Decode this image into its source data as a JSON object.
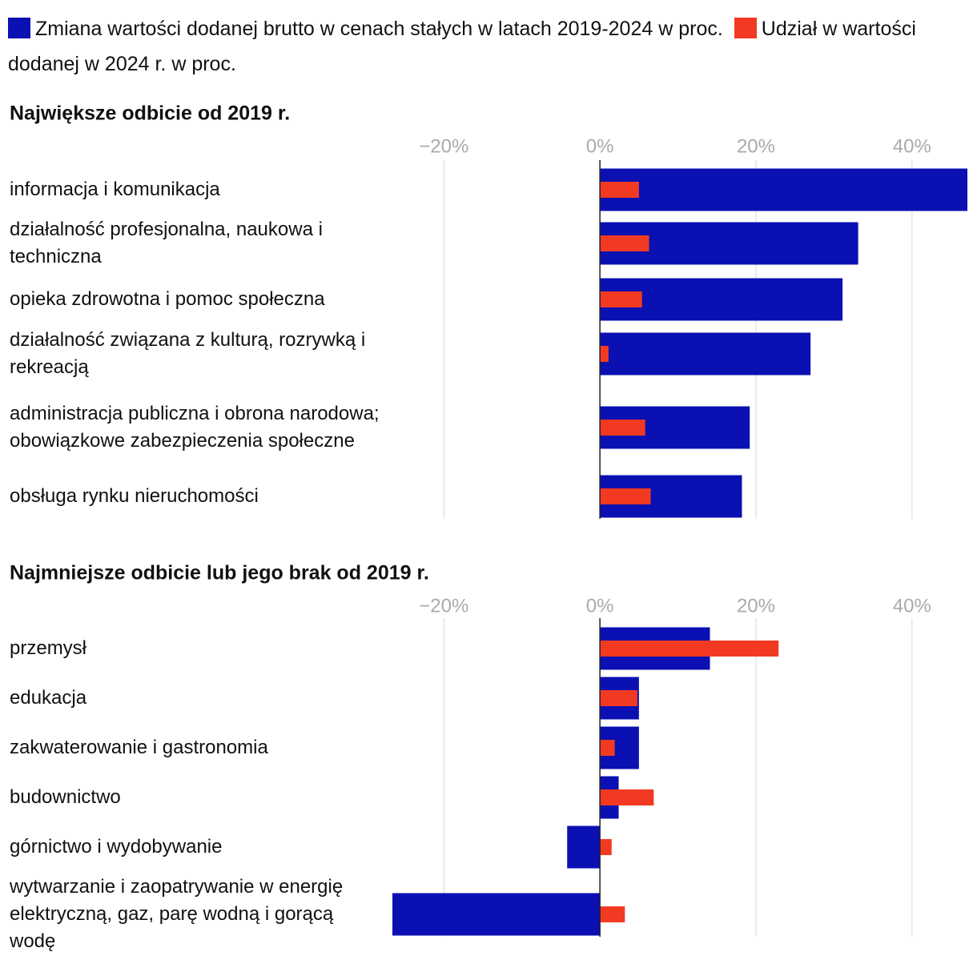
{
  "chart_data": [
    {
      "type": "bar",
      "orientation": "horizontal",
      "title": "Największe odbicie od 2019 r.",
      "categories": [
        "informacja i komunikacja",
        "działalność profesjonalna, naukowa i techniczna",
        "opieka zdrowotna i pomoc społeczna",
        "działalność związana z kulturą, rozrywką i rekreacją",
        "administracja publiczna i obrona narodowa; obowiązkowe zabezpieczenia społeczne",
        "obsługa rynku nieruchomości"
      ],
      "series": [
        {
          "name": "Zmiana wartości dodanej brutto w cenach stałych w latach 2019-2024 w proc.",
          "color": "#0a10b2",
          "values": [
            47.1,
            33.1,
            31.1,
            27.0,
            19.2,
            18.2
          ]
        },
        {
          "name": "Udział w wartości dodanej w 2024 r. w proc.",
          "color": "#f23a22",
          "values": [
            5.0,
            6.3,
            5.4,
            1.1,
            5.8,
            6.5
          ]
        }
      ],
      "xlim": [
        -26.6,
        47.1
      ],
      "xticks": [
        {
          "value": -20,
          "label": "−20%"
        },
        {
          "value": 0,
          "label": "0%"
        },
        {
          "value": 20,
          "label": "20%"
        },
        {
          "value": 40,
          "label": "40%"
        }
      ],
      "grid": true
    },
    {
      "type": "bar",
      "orientation": "horizontal",
      "title": "Najmniejsze odbicie lub jego brak od 2019 r.",
      "categories": [
        "przemysł",
        "edukacja",
        "zakwaterowanie i gastronomia",
        "budownictwo",
        "górnictwo i wydobywanie",
        "wytwarzanie i zaopatrywanie w energię elektryczną, gaz, parę wodną i gorącą wodę"
      ],
      "series": [
        {
          "color": "#0a10b2",
          "values": [
            14.1,
            5.0,
            5.0,
            2.4,
            -4.2,
            -26.6
          ]
        },
        {
          "color": "#f23a22",
          "values": [
            22.9,
            4.8,
            1.9,
            6.9,
            1.5,
            3.2
          ]
        }
      ],
      "xlim": [
        -26.6,
        47.1
      ],
      "xticks": [
        {
          "value": -20,
          "label": "−20%"
        },
        {
          "value": 0,
          "label": "0%"
        },
        {
          "value": 20,
          "label": "20%"
        },
        {
          "value": 40,
          "label": "40%"
        }
      ],
      "grid": true
    }
  ]
}
